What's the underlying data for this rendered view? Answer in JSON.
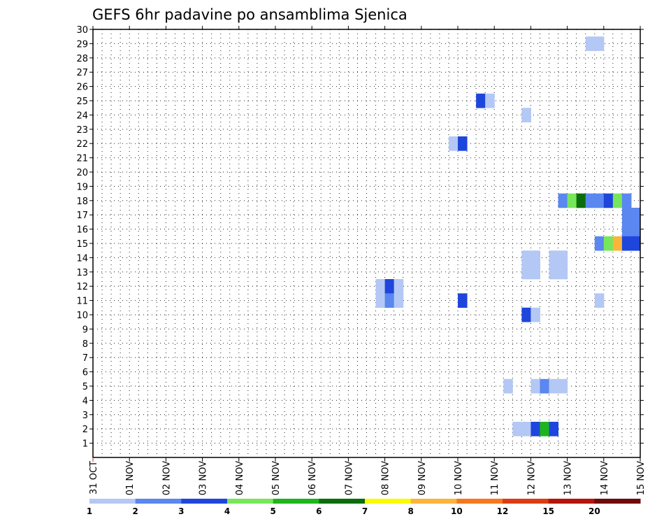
{
  "chart_data": {
    "type": "heatmap",
    "title": "GEFS 6hr padavine po ansamblima Sjenica",
    "xlabel": "",
    "ylabel": "",
    "x_tick_labels": [
      "31 OCT",
      "01 NOV",
      "02 NOV",
      "03 NOV",
      "04 NOV",
      "05 NOV",
      "06 NOV",
      "07 NOV",
      "08 NOV",
      "09 NOV",
      "10 NOV",
      "11 NOV",
      "12 NOV",
      "13 NOV",
      "14 NOV",
      "15 NOV"
    ],
    "x_range_days": [
      0,
      15
    ],
    "y_tick_labels": [
      1,
      2,
      3,
      4,
      5,
      6,
      7,
      8,
      9,
      10,
      11,
      12,
      13,
      14,
      15,
      16,
      17,
      18,
      19,
      20,
      21,
      22,
      23,
      24,
      25,
      26,
      27,
      28,
      29,
      30
    ],
    "y_range": [
      0,
      30
    ],
    "grid": true,
    "colorbar": {
      "labels": [
        "1",
        "2",
        "3",
        "4",
        "5",
        "6",
        "7",
        "8",
        "10",
        "12",
        "15",
        "20"
      ],
      "colors": [
        "#b4c8f5",
        "#5a87f0",
        "#1e46dc",
        "#78e65a",
        "#1eb41e",
        "#0a6e0a",
        "#fafa00",
        "#fab43c",
        "#f5781e",
        "#dc3c14",
        "#b4140a",
        "#6e0a0a"
      ]
    },
    "cells_note": "each cell = [day offset from 31 OCT in 6h steps start, member, level index]",
    "cells": [
      [
        13.5,
        29,
        0
      ],
      [
        13.75,
        29,
        0
      ],
      [
        10.5,
        25,
        2
      ],
      [
        10.75,
        25,
        0
      ],
      [
        11.75,
        24,
        0
      ],
      [
        9.75,
        22,
        0
      ],
      [
        10.0,
        22,
        2
      ],
      [
        12.75,
        18,
        1
      ],
      [
        13.0,
        18,
        3
      ],
      [
        13.25,
        18,
        5
      ],
      [
        13.5,
        18,
        1
      ],
      [
        13.75,
        18,
        1
      ],
      [
        14.0,
        18,
        2
      ],
      [
        14.25,
        18,
        3
      ],
      [
        14.5,
        18,
        1
      ],
      [
        14.5,
        17,
        1
      ],
      [
        14.75,
        17,
        1
      ],
      [
        14.5,
        16,
        1
      ],
      [
        14.75,
        16,
        1
      ],
      [
        13.75,
        15,
        1
      ],
      [
        14.0,
        15,
        3
      ],
      [
        14.25,
        15,
        7
      ],
      [
        14.5,
        15,
        2
      ],
      [
        14.75,
        15,
        2
      ],
      [
        11.75,
        14,
        0
      ],
      [
        12.0,
        14,
        0
      ],
      [
        12.5,
        14,
        0
      ],
      [
        12.75,
        14,
        0
      ],
      [
        11.75,
        13,
        0
      ],
      [
        12.0,
        13,
        0
      ],
      [
        12.5,
        13,
        0
      ],
      [
        12.75,
        13,
        0
      ],
      [
        7.75,
        12,
        0
      ],
      [
        8.0,
        12,
        2
      ],
      [
        8.25,
        12,
        0
      ],
      [
        7.75,
        11,
        0
      ],
      [
        8.0,
        11,
        1
      ],
      [
        8.25,
        11,
        0
      ],
      [
        10.0,
        11,
        2
      ],
      [
        13.75,
        11,
        0
      ],
      [
        11.75,
        10,
        2
      ],
      [
        12.0,
        10,
        0
      ],
      [
        11.25,
        5,
        0
      ],
      [
        12.0,
        5,
        0
      ],
      [
        12.25,
        5,
        1
      ],
      [
        12.5,
        5,
        0
      ],
      [
        12.75,
        5,
        0
      ],
      [
        11.5,
        2,
        0
      ],
      [
        11.75,
        2,
        0
      ],
      [
        12.0,
        2,
        2
      ],
      [
        12.25,
        2,
        4
      ],
      [
        12.5,
        2,
        2
      ]
    ]
  }
}
